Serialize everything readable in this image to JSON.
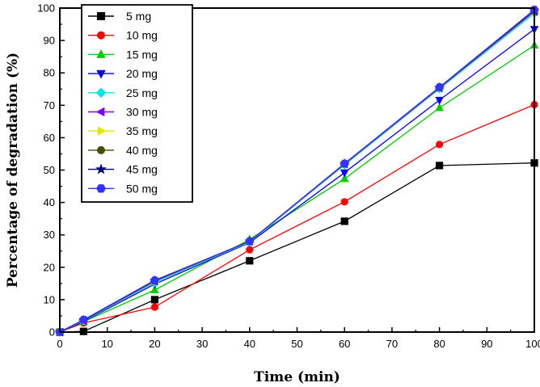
{
  "chart_data": {
    "type": "line",
    "title": "",
    "xlabel": "Time (min)",
    "ylabel": "Percentage of degradation (%)",
    "xlim": [
      0,
      100
    ],
    "ylim": [
      0,
      100
    ],
    "xticks": [
      0,
      10,
      20,
      30,
      40,
      50,
      60,
      70,
      80,
      90,
      100
    ],
    "yticks": [
      0,
      10,
      20,
      30,
      40,
      50,
      60,
      70,
      80,
      90,
      100
    ],
    "legend_position": "top-left",
    "x": [
      0,
      5,
      20,
      40,
      60,
      80,
      100
    ],
    "series": [
      {
        "name": "5 mg",
        "color": "#000000",
        "marker": "square",
        "values": [
          0,
          0.2,
          10,
          22,
          34.2,
          51.4,
          52.2
        ]
      },
      {
        "name": "10 mg",
        "color": "#ff0000",
        "marker": "circle",
        "values": [
          0,
          2.8,
          7.7,
          25.4,
          40.2,
          57.9,
          70.2
        ]
      },
      {
        "name": "15 mg",
        "color": "#00cc00",
        "marker": "triangle-up",
        "values": [
          0,
          3.2,
          13,
          28.6,
          47.3,
          69.2,
          88.5
        ]
      },
      {
        "name": "20 mg",
        "color": "#0000ff",
        "marker": "triangle-down",
        "values": [
          0,
          3.3,
          14.8,
          27.6,
          49.2,
          71.6,
          93.5
        ]
      },
      {
        "name": "25 mg",
        "color": "#00e6e6",
        "marker": "diamond",
        "values": [
          0,
          3.5,
          15.3,
          27.8,
          51.6,
          75.1,
          98.4
        ]
      },
      {
        "name": "30 mg",
        "color": "#8000ff",
        "marker": "triangle-left",
        "values": [
          0,
          3.6,
          15.6,
          27.9,
          51.8,
          75.3,
          98.9
        ]
      },
      {
        "name": "35 mg",
        "color": "#e6e600",
        "marker": "triangle-right",
        "values": [
          0,
          3.6,
          15.7,
          27.9,
          51.9,
          75.4,
          99.1
        ]
      },
      {
        "name": "40 mg",
        "color": "#4b4b00",
        "marker": "circle",
        "values": [
          0,
          3.7,
          15.8,
          28.0,
          52.0,
          75.5,
          99.2
        ]
      },
      {
        "name": "45 mg",
        "color": "#00007f",
        "marker": "star",
        "values": [
          0,
          3.7,
          15.9,
          28.0,
          52.0,
          75.5,
          99.3
        ]
      },
      {
        "name": "50 mg",
        "color": "#3333ff",
        "marker": "hexagon",
        "values": [
          0,
          3.8,
          16.0,
          28.0,
          52.0,
          75.6,
          99.5
        ]
      }
    ]
  }
}
